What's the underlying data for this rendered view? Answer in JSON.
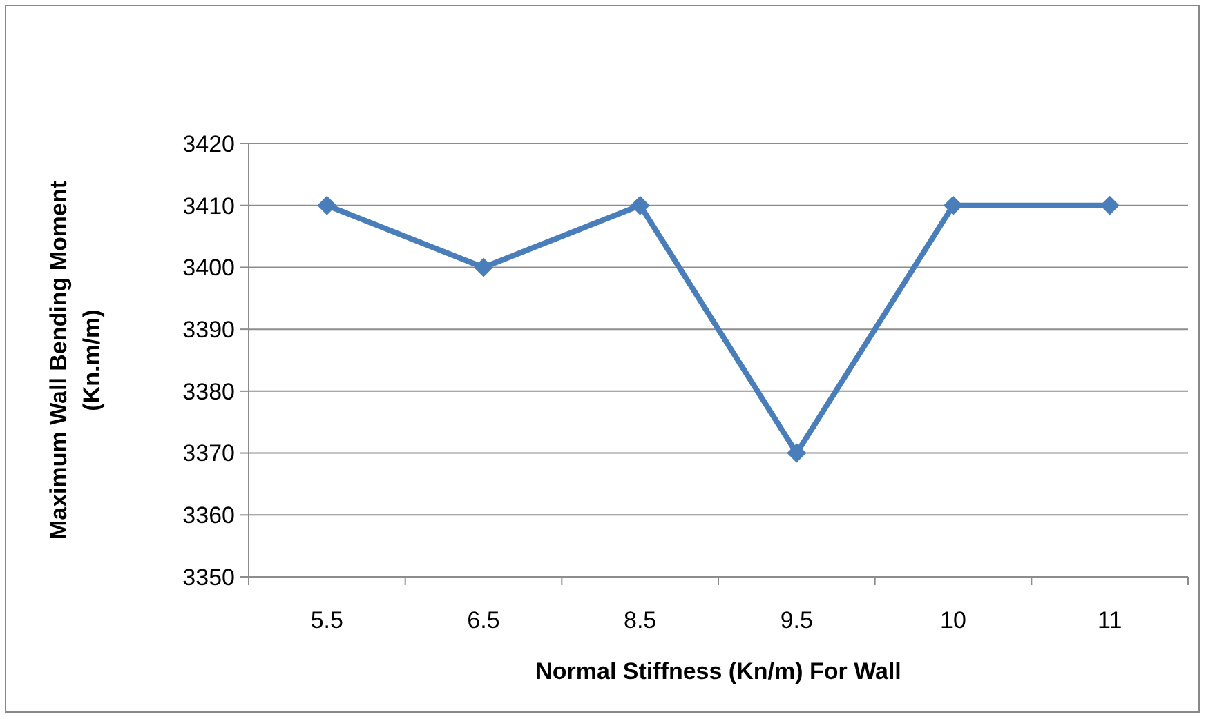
{
  "chart_data": {
    "type": "line",
    "xlabel": "Normal Stiffness (Kn/m) For Wall",
    "ylabel": "Maximum Wall Bending Moment\n(Kn.m/m)",
    "categories": [
      "5.5",
      "6.5",
      "8.5",
      "9.5",
      "10",
      "11"
    ],
    "series": [
      {
        "color": "#4a7ebb",
        "values": [
          3410,
          3400,
          3410,
          3370,
          3410,
          3410
        ]
      }
    ],
    "ylim": [
      3350,
      3420
    ],
    "yticks": [
      3350,
      3360,
      3370,
      3380,
      3390,
      3400,
      3410,
      3420
    ],
    "grid": "y",
    "marker": "diamond",
    "line_style": "solid"
  }
}
